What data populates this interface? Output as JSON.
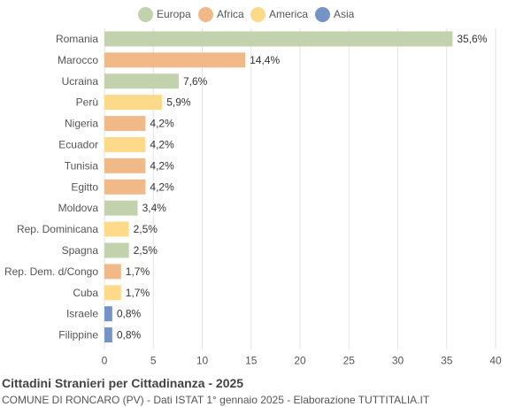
{
  "chart_data": {
    "type": "bar",
    "orientation": "horizontal",
    "categories": [
      "Romania",
      "Marocco",
      "Ucraina",
      "Perù",
      "Nigeria",
      "Ecuador",
      "Tunisia",
      "Egitto",
      "Moldova",
      "Rep. Dominicana",
      "Spagna",
      "Rep. Dem. d/Congo",
      "Cuba",
      "Israele",
      "Filippine"
    ],
    "values": [
      35.6,
      14.4,
      7.6,
      5.9,
      4.2,
      4.2,
      4.2,
      4.2,
      3.4,
      2.5,
      2.5,
      1.7,
      1.7,
      0.8,
      0.8
    ],
    "value_labels": [
      "35,6%",
      "14,4%",
      "7,6%",
      "5,9%",
      "4,2%",
      "4,2%",
      "4,2%",
      "4,2%",
      "3,4%",
      "2,5%",
      "2,5%",
      "1,7%",
      "1,7%",
      "0,8%",
      "0,8%"
    ],
    "groups": [
      "Europa",
      "Africa",
      "Europa",
      "America",
      "Africa",
      "America",
      "Africa",
      "Africa",
      "Europa",
      "America",
      "Europa",
      "Africa",
      "America",
      "Asia",
      "Asia"
    ],
    "legend": [
      {
        "name": "Europa",
        "color": "#c1d2ad"
      },
      {
        "name": "Africa",
        "color": "#f0b987"
      },
      {
        "name": "America",
        "color": "#fdd98a"
      },
      {
        "name": "Asia",
        "color": "#7593c7"
      }
    ],
    "legend_position": "top-center",
    "xlim": [
      0,
      40
    ],
    "xticks": [
      0,
      5,
      10,
      15,
      20,
      25,
      30,
      35,
      40
    ],
    "grid": true,
    "title": "Cittadini Stranieri per Cittadinanza - 2025",
    "subtitle": "COMUNE DI RONCARO (PV) - Dati ISTAT 1° gennaio 2025 - Elaborazione TUTTITALIA.IT"
  }
}
